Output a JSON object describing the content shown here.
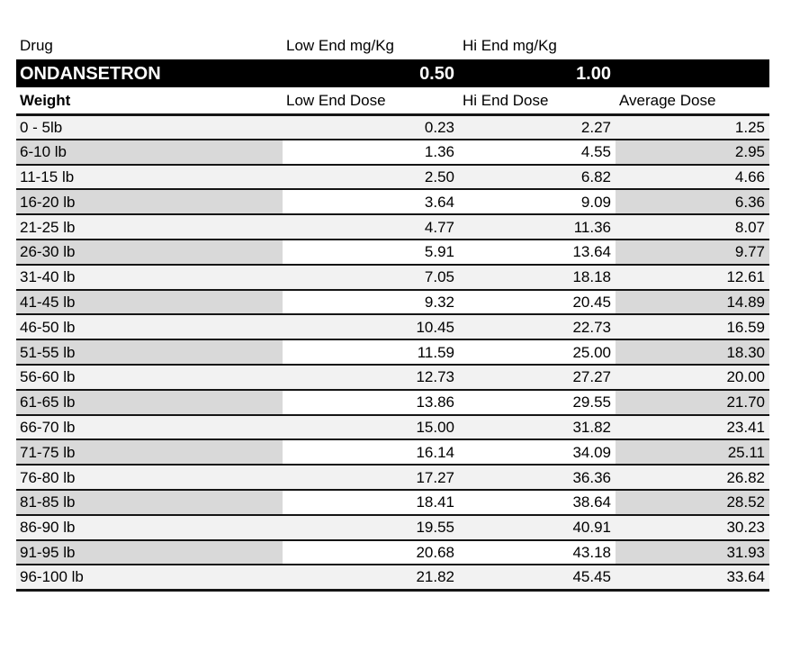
{
  "table": {
    "header_row": {
      "drug_label": "Drug",
      "low_label": "Low End mg/Kg",
      "hi_label": "Hi End mg/Kg"
    },
    "drug_band": {
      "name": "ONDANSETRON",
      "low_value": "0.50",
      "hi_value": "1.00"
    },
    "dose_header": {
      "weight_label": "Weight",
      "low_label": "Low End Dose",
      "hi_label": "Hi End Dose",
      "avg_label": "Average Dose"
    },
    "rows": [
      {
        "weight": "0 - 5lb",
        "low": "0.23",
        "hi": "2.27",
        "avg": "1.25"
      },
      {
        "weight": "6-10 lb",
        "low": "1.36",
        "hi": "4.55",
        "avg": "2.95"
      },
      {
        "weight": "11-15 lb",
        "low": "2.50",
        "hi": "6.82",
        "avg": "4.66"
      },
      {
        "weight": "16-20 lb",
        "low": "3.64",
        "hi": "9.09",
        "avg": "6.36"
      },
      {
        "weight": "21-25 lb",
        "low": "4.77",
        "hi": "11.36",
        "avg": "8.07"
      },
      {
        "weight": "26-30 lb",
        "low": "5.91",
        "hi": "13.64",
        "avg": "9.77"
      },
      {
        "weight": "31-40 lb",
        "low": "7.05",
        "hi": "18.18",
        "avg": "12.61"
      },
      {
        "weight": "41-45 lb",
        "low": "9.32",
        "hi": "20.45",
        "avg": "14.89"
      },
      {
        "weight": "46-50 lb",
        "low": "10.45",
        "hi": "22.73",
        "avg": "16.59"
      },
      {
        "weight": "51-55 lb",
        "low": "11.59",
        "hi": "25.00",
        "avg": "18.30"
      },
      {
        "weight": "56-60 lb",
        "low": "12.73",
        "hi": "27.27",
        "avg": "20.00"
      },
      {
        "weight": "61-65 lb",
        "low": "13.86",
        "hi": "29.55",
        "avg": "21.70"
      },
      {
        "weight": "66-70 lb",
        "low": "15.00",
        "hi": "31.82",
        "avg": "23.41"
      },
      {
        "weight": "71-75 lb",
        "low": "16.14",
        "hi": "34.09",
        "avg": "25.11"
      },
      {
        "weight": "76-80 lb",
        "low": "17.27",
        "hi": "36.36",
        "avg": "26.82"
      },
      {
        "weight": "81-85 lb",
        "low": "18.41",
        "hi": "38.64",
        "avg": "28.52"
      },
      {
        "weight": "86-90 lb",
        "low": "19.55",
        "hi": "40.91",
        "avg": "30.23"
      },
      {
        "weight": "91-95 lb",
        "low": "20.68",
        "hi": "43.18",
        "avg": "31.93"
      },
      {
        "weight": "96-100 lb",
        "low": "21.82",
        "hi": "45.45",
        "avg": "33.64"
      }
    ],
    "colors": {
      "light_row": "#f2f2f2",
      "dark_row": "#d9d9d9",
      "band_background": "#000000",
      "band_text": "#ffffff",
      "border": "#151515"
    }
  }
}
